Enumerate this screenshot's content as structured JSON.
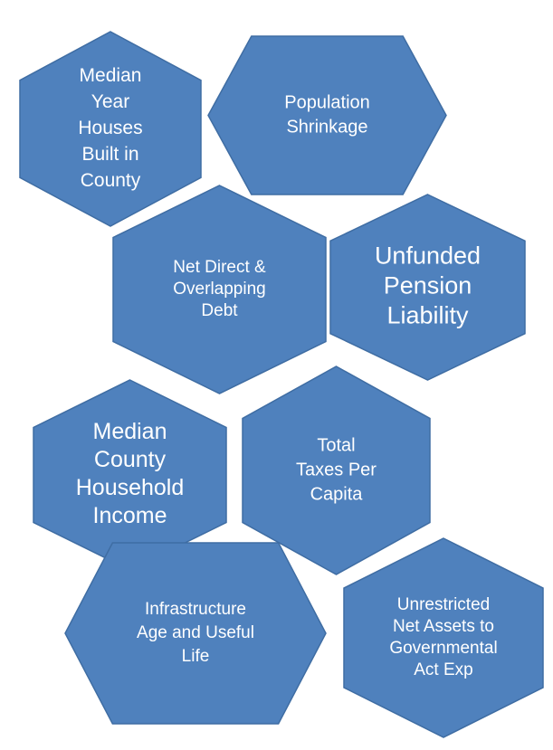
{
  "hexagons": [
    {
      "lines": [
        "Median",
        "Year",
        "Houses",
        "Built in",
        "County"
      ]
    },
    {
      "lines": [
        "Population",
        "Shrinkage"
      ]
    },
    {
      "lines": [
        "Net Direct  &",
        "Overlapping",
        "Debt"
      ]
    },
    {
      "lines": [
        "Unfunded",
        "Pension",
        "Liability"
      ]
    },
    {
      "lines": [
        "Median",
        "County",
        "Household",
        "Income"
      ]
    },
    {
      "lines": [
        "Total",
        "Taxes Per",
        "Capita"
      ]
    },
    {
      "lines": [
        "Infrastructure",
        "Age and Useful",
        "Life"
      ]
    },
    {
      "lines": [
        "Unrestricted",
        "Net Assets to",
        "Governmental",
        "Act Exp"
      ]
    }
  ]
}
